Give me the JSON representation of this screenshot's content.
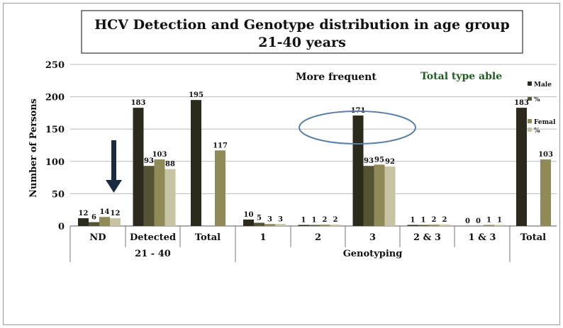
{
  "chart_data": {
    "type": "bar",
    "title": "HCV Detection and Genotype distribution in age group 21-40 years",
    "title_lines": [
      "HCV Detection and Genotype distribution in age group",
      "21-40 years"
    ],
    "ylabel": "Number of Persons",
    "xlabel": "",
    "ylim": [
      0,
      250
    ],
    "y_ticks": [
      0,
      50,
      100,
      150,
      200,
      250
    ],
    "grid": true,
    "legend_position": "right",
    "series_names": [
      "Male",
      "%",
      "Femal",
      "%"
    ],
    "series_colors": [
      "#2b2a1c",
      "#545434",
      "#8f8a58",
      "#c8c3a2"
    ],
    "categories": [
      "ND",
      "Detected",
      "Total",
      "1",
      "2",
      "3",
      "2 & 3",
      "1 & 3",
      "Total"
    ],
    "group_labels": [
      "21 - 40",
      "Genotyping"
    ],
    "annotations": [
      "More frequent",
      "Total type able"
    ],
    "bars": [
      {
        "category": "ND",
        "values": [
          12,
          6,
          14,
          12
        ],
        "labels": [
          "12",
          "6",
          "14",
          "12"
        ]
      },
      {
        "category": "Detected",
        "values": [
          183,
          93,
          103,
          88
        ],
        "labels": [
          "183",
          "93",
          "103",
          "88"
        ]
      },
      {
        "category": "Total",
        "values": [
          195,
          null,
          117,
          null
        ],
        "labels": [
          "195",
          "",
          "117",
          ""
        ]
      },
      {
        "category": "1",
        "values": [
          10,
          5,
          3,
          3
        ],
        "labels": [
          "10",
          "5",
          "3",
          "3"
        ]
      },
      {
        "category": "2",
        "values": [
          1,
          1,
          2,
          2
        ],
        "labels": [
          "1",
          "1",
          "2",
          "2"
        ]
      },
      {
        "category": "3",
        "values": [
          171,
          93,
          95,
          92
        ],
        "labels": [
          "171",
          "93",
          "95",
          "92"
        ]
      },
      {
        "category": "2 & 3",
        "values": [
          1,
          1,
          2,
          2
        ],
        "labels": [
          "1",
          "1",
          "2",
          "2"
        ]
      },
      {
        "category": "1 & 3",
        "values": [
          0,
          0,
          1,
          1
        ],
        "labels": [
          "0",
          "0",
          "1",
          "1"
        ]
      },
      {
        "category": "Total",
        "values": [
          183,
          null,
          103,
          null
        ],
        "labels": [
          "183",
          "",
          "103",
          ""
        ]
      }
    ],
    "arrow_icon": "down-arrow-icon",
    "highlight_shape": "ellipse-highlight around genotype 3 peak",
    "colors": {
      "gridline": "#b9b9b9",
      "highlight": "#5b7fa6",
      "arrow": "#1a2a40",
      "green_text": "#1f5c1f"
    }
  }
}
